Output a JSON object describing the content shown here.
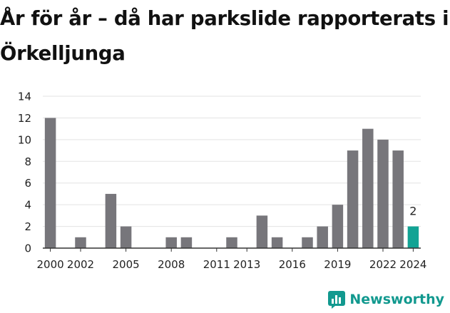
{
  "title": "År för år – då har parkslide rapporterats i Örkelljunga",
  "brand": {
    "name": "Newsworthy",
    "icon": "newsworthy-logo-icon"
  },
  "colors": {
    "bar": "#77767b",
    "highlight": "#12a394",
    "grid": "#e3e3e3",
    "axis": "#333333",
    "brand": "#12998f"
  },
  "chart_data": {
    "type": "bar",
    "title": "År för år – då har parkslide rapporterats i Örkelljunga",
    "xlabel": "",
    "ylabel": "",
    "ylim": [
      0,
      14
    ],
    "yticks": [
      0,
      2,
      4,
      6,
      8,
      10,
      12,
      14
    ],
    "grid": true,
    "legend": "none",
    "categories": [
      "2000",
      "2001",
      "2002",
      "2003",
      "2004",
      "2005",
      "2006",
      "2007",
      "2008",
      "2009",
      "2010",
      "2011",
      "2012",
      "2013",
      "2014",
      "2015",
      "2016",
      "2017",
      "2018",
      "2019",
      "2020",
      "2021",
      "2022",
      "2023",
      "2024"
    ],
    "values": [
      12,
      0,
      1,
      0,
      5,
      2,
      0,
      0,
      1,
      1,
      0,
      0,
      1,
      0,
      3,
      1,
      0,
      1,
      2,
      4,
      9,
      11,
      10,
      9,
      2
    ],
    "xtick_labels": [
      "2000",
      "2002",
      "2005",
      "2008",
      "2011",
      "2013",
      "2016",
      "2019",
      "2022",
      "2024"
    ],
    "highlight": {
      "category": "2024",
      "label": "2"
    }
  }
}
